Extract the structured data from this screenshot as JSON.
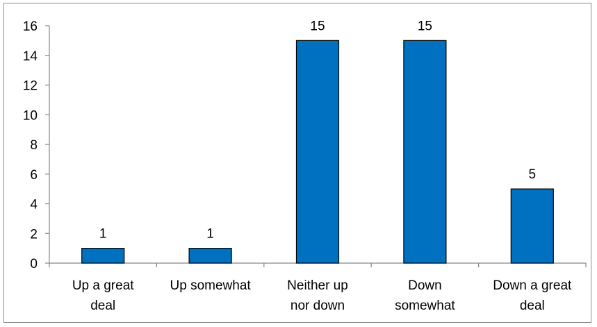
{
  "chart_data": {
    "type": "bar",
    "title": "",
    "xlabel": "",
    "ylabel": "",
    "categories": [
      [
        "Up a great",
        "deal"
      ],
      [
        "Up somewhat"
      ],
      [
        "Neither up",
        "nor down"
      ],
      [
        "Down",
        "somewhat"
      ],
      [
        "Down a great",
        "deal"
      ]
    ],
    "values": [
      1,
      1,
      15,
      15,
      5
    ],
    "data_labels": [
      "1",
      "1",
      "15",
      "15",
      "5"
    ],
    "ylim": [
      0,
      16
    ],
    "yticks": [
      0,
      2,
      4,
      6,
      8,
      10,
      12,
      14,
      16
    ],
    "grid": false,
    "legend": "none",
    "colors": {
      "bar_fill": "#0070C0",
      "bar_stroke": "#000000",
      "axis": "#868686"
    }
  }
}
